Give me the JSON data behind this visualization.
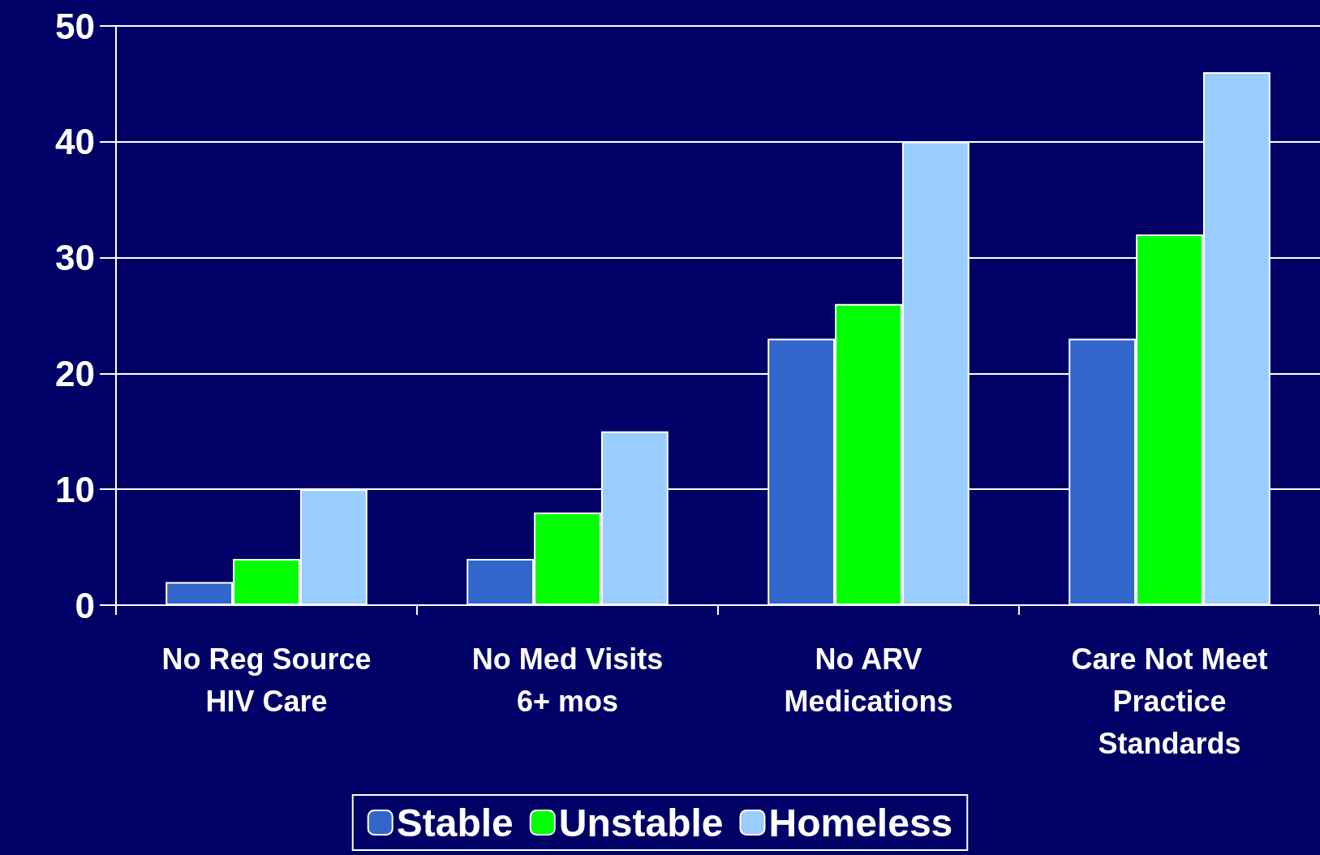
{
  "chart_data": {
    "type": "bar",
    "categories": [
      "No Reg Source\nHIV Care",
      "No Med Visits\n6+ mos",
      "No ARV\nMedications",
      "Care Not Meet\nPractice\nStandards"
    ],
    "series": [
      {
        "name": "Stable",
        "color": "#3366cc",
        "values": [
          2,
          4,
          23,
          23
        ]
      },
      {
        "name": "Unstable",
        "color": "#00ff00",
        "values": [
          4,
          8,
          26,
          32
        ]
      },
      {
        "name": "Homeless",
        "color": "#99ccff",
        "values": [
          10,
          15,
          40,
          46
        ]
      }
    ],
    "ylim": [
      0,
      50
    ],
    "yticks": [
      0,
      10,
      20,
      30,
      40,
      50
    ],
    "grid": "y",
    "legend": "bottom"
  }
}
